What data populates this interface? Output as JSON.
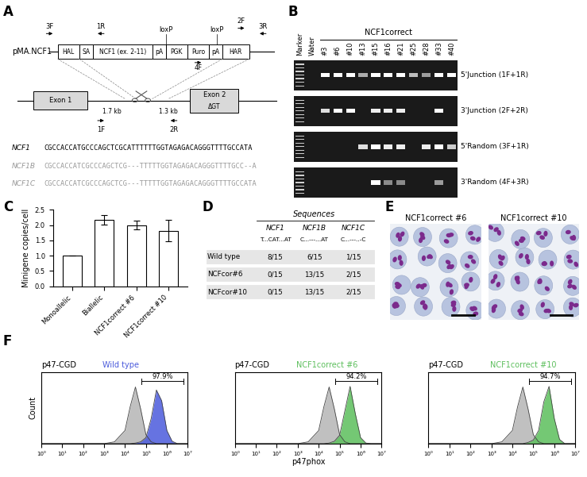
{
  "panel_labels": [
    "A",
    "B",
    "C",
    "D",
    "E",
    "F"
  ],
  "diagram": {
    "plasmid": "pMA.NCF1",
    "cassette": [
      "HAL",
      "SA",
      "NCF1 (ex. 2-11)",
      "pA",
      "PGK",
      "Puro",
      "pA",
      "HAR"
    ],
    "primers": [
      "3F",
      "1R",
      "loxP",
      "4F",
      "loxP",
      "2F",
      "3R"
    ],
    "exons": [
      "Exon 1",
      "Exon 2"
    ],
    "deletion": "ΔGT",
    "distances": [
      "1.7 kb",
      "1.3 kb"
    ],
    "genomic_primers": [
      "1F",
      "2R"
    ],
    "sequences": [
      {
        "name": "NCF1",
        "seq": "CGCCACCATGCCCAGCTCGCATTTTTTGGTAGAGACAGGGTTTTGCCATA"
      },
      {
        "name": "NCF1B",
        "seq": "CGCCACCATCGCCCAGCTCG---TTTTTGGTAGAGACAGGGTTTTGCC--A"
      },
      {
        "name": "NCF1C",
        "seq": "CGCCACCATCGCCCAGCTCG---TTTTTGGTAGAGACAGGGTTTTGCCATA"
      }
    ]
  },
  "gel": {
    "header": "NCF1correct",
    "lanes": [
      "Marker",
      "Water",
      "#3",
      "#6",
      "#10",
      "#13",
      "#15",
      "#16",
      "#21",
      "#25",
      "#28",
      "#33",
      "#40"
    ],
    "rows": [
      {
        "name": "5'Junction (1F+1R)",
        "bands": [
          1,
          0,
          1,
          1,
          1,
          0.5,
          1,
          1,
          1,
          0.6,
          0.4,
          1,
          1
        ]
      },
      {
        "name": "3'Junction (2F+2R)",
        "bands": [
          1,
          0,
          0.8,
          1,
          1,
          0,
          0.9,
          0.9,
          0.9,
          0,
          0,
          1,
          0
        ]
      },
      {
        "name": "5'Random (3F+1R)",
        "bands": [
          1,
          0,
          0,
          0,
          0,
          0.8,
          1,
          0.9,
          0.9,
          0,
          0.9,
          1,
          0.7
        ]
      },
      {
        "name": "3'Random (4F+3R)",
        "bands": [
          1,
          0,
          0,
          0,
          0,
          0,
          1,
          0.3,
          0.3,
          0,
          0,
          0.4,
          0
        ]
      }
    ]
  },
  "chart_data": [
    {
      "type": "bar",
      "ylabel": "Minigene copies/cell",
      "categories": [
        "Monoallelic",
        "Biallelic",
        "NCF1correct #6",
        "NCF1correct #10"
      ],
      "values": [
        1.0,
        2.17,
        2.0,
        1.82
      ],
      "errors": [
        0,
        0.16,
        0.15,
        0.35
      ],
      "color": "#ffffff",
      "ylim": [
        0,
        2.5
      ],
      "yticks": [
        {
          "value": 0,
          "label": "0.0"
        },
        {
          "value": 0.5,
          "label": "0.5"
        },
        {
          "value": 1.0,
          "label": "1.0"
        },
        {
          "value": 1.5,
          "label": "1.5"
        },
        {
          "value": 2.0,
          "label": "2.0"
        },
        {
          "value": 2.5,
          "label": "2.5"
        }
      ]
    },
    {
      "type": "area",
      "log": "x",
      "tick_labels": "x",
      "ylabel": "Count",
      "x": [
        1,
        100,
        1000,
        3162,
        10000,
        17783,
        31623,
        56234,
        100000,
        177828,
        316228,
        562341,
        1000000,
        1778279,
        3162278,
        10000000
      ],
      "series": [
        {
          "name": "p47-CGD",
          "color": "#b5b5b5",
          "values": [
            0,
            0,
            0,
            3,
            22,
            62,
            95,
            58,
            15,
            3,
            0,
            0,
            0,
            0,
            0,
            0
          ]
        },
        {
          "name": "Wild type",
          "color": "#4b5bdc",
          "values": [
            0,
            0,
            0,
            0,
            0,
            0,
            1,
            3,
            10,
            42,
            90,
            72,
            22,
            4,
            0,
            0
          ]
        }
      ],
      "gate": {
        "range": [
          63096,
          6309573
        ],
        "label": "97.9%"
      },
      "xlim": [
        1,
        10000000
      ],
      "xticks": [
        {
          "value": 1,
          "label": "10⁰"
        },
        {
          "value": 10,
          "label": "10¹"
        },
        {
          "value": 100,
          "label": "10²"
        },
        {
          "value": 1000,
          "label": "10³"
        },
        {
          "value": 10000,
          "label": "10⁴"
        },
        {
          "value": 100000,
          "label": "10⁵"
        },
        {
          "value": 1000000,
          "label": "10⁶"
        },
        {
          "value": 10000000,
          "label": "10⁷"
        }
      ],
      "ylim": [
        0,
        120
      ],
      "yticks": []
    },
    {
      "type": "area",
      "log": "x",
      "tick_labels": "x",
      "xlabel": "p47phox",
      "x": [
        1,
        100,
        1000,
        3162,
        10000,
        17783,
        31623,
        56234,
        100000,
        177828,
        316228,
        562341,
        1000000,
        1778279,
        3162278,
        10000000
      ],
      "series": [
        {
          "name": "p47-CGD",
          "color": "#b5b5b5",
          "values": [
            0,
            0,
            0,
            3,
            22,
            62,
            95,
            58,
            15,
            3,
            0,
            0,
            0,
            0,
            0,
            0
          ]
        },
        {
          "name": "NCF1correct #6",
          "color": "#5cbf5c",
          "values": [
            0,
            0,
            0,
            0,
            0,
            0,
            1,
            4,
            14,
            55,
            96,
            50,
            10,
            1,
            0,
            0
          ]
        }
      ],
      "gate": {
        "range": [
          63096,
          6309573
        ],
        "label": "94.2%"
      },
      "xlim": [
        1,
        10000000
      ],
      "xticks": [
        {
          "value": 1,
          "label": "10⁰"
        },
        {
          "value": 10,
          "label": "10¹"
        },
        {
          "value": 100,
          "label": "10²"
        },
        {
          "value": 1000,
          "label": "10³"
        },
        {
          "value": 10000,
          "label": "10⁴"
        },
        {
          "value": 100000,
          "label": "10⁵"
        },
        {
          "value": 1000000,
          "label": "10⁶"
        },
        {
          "value": 10000000,
          "label": "10⁷"
        }
      ],
      "ylim": [
        0,
        120
      ],
      "yticks": []
    },
    {
      "type": "area",
      "log": "x",
      "tick_labels": "x",
      "x": [
        1,
        100,
        1000,
        3162,
        10000,
        17783,
        31623,
        56234,
        100000,
        177828,
        316228,
        562341,
        1000000,
        1778279,
        3162278,
        10000000
      ],
      "series": [
        {
          "name": "p47-CGD",
          "color": "#b5b5b5",
          "values": [
            0,
            0,
            0,
            3,
            22,
            62,
            95,
            58,
            15,
            3,
            0,
            0,
            0,
            0,
            0,
            0
          ]
        },
        {
          "name": "NCF1correct #10",
          "color": "#5cbf5c",
          "values": [
            0,
            0,
            0,
            0,
            0,
            0,
            0,
            2,
            6,
            22,
            70,
            96,
            42,
            7,
            0,
            0
          ]
        }
      ],
      "gate": {
        "range": [
          63096,
          6309573
        ],
        "label": "94.7%"
      },
      "xlim": [
        1,
        10000000
      ],
      "xticks": [
        {
          "value": 1,
          "label": "10⁰"
        },
        {
          "value": 10,
          "label": "10¹"
        },
        {
          "value": 100,
          "label": "10²"
        },
        {
          "value": 1000,
          "label": "10³"
        },
        {
          "value": 10000,
          "label": "10⁴"
        },
        {
          "value": 100000,
          "label": "10⁵"
        },
        {
          "value": 1000000,
          "label": "10⁶"
        },
        {
          "value": 10000000,
          "label": "10⁷"
        }
      ],
      "ylim": [
        0,
        120
      ],
      "yticks": []
    }
  ],
  "table": {
    "title": "Sequences",
    "columns": [
      "NCF1",
      "NCF1B",
      "NCF1C"
    ],
    "motifs": [
      "T...CAT...AT",
      "C...---...AT",
      "C...---..-C"
    ],
    "rows": [
      [
        "Wild type",
        "8/15",
        "6/15",
        "1/15"
      ],
      [
        "NCFcor#6",
        "0/15",
        "13/15",
        "2/15"
      ],
      [
        "NCFcor#10",
        "0/15",
        "13/15",
        "2/15"
      ]
    ]
  },
  "micrographs": {
    "titles": [
      "NCF1correct #6",
      "NCF1correct #10"
    ]
  }
}
